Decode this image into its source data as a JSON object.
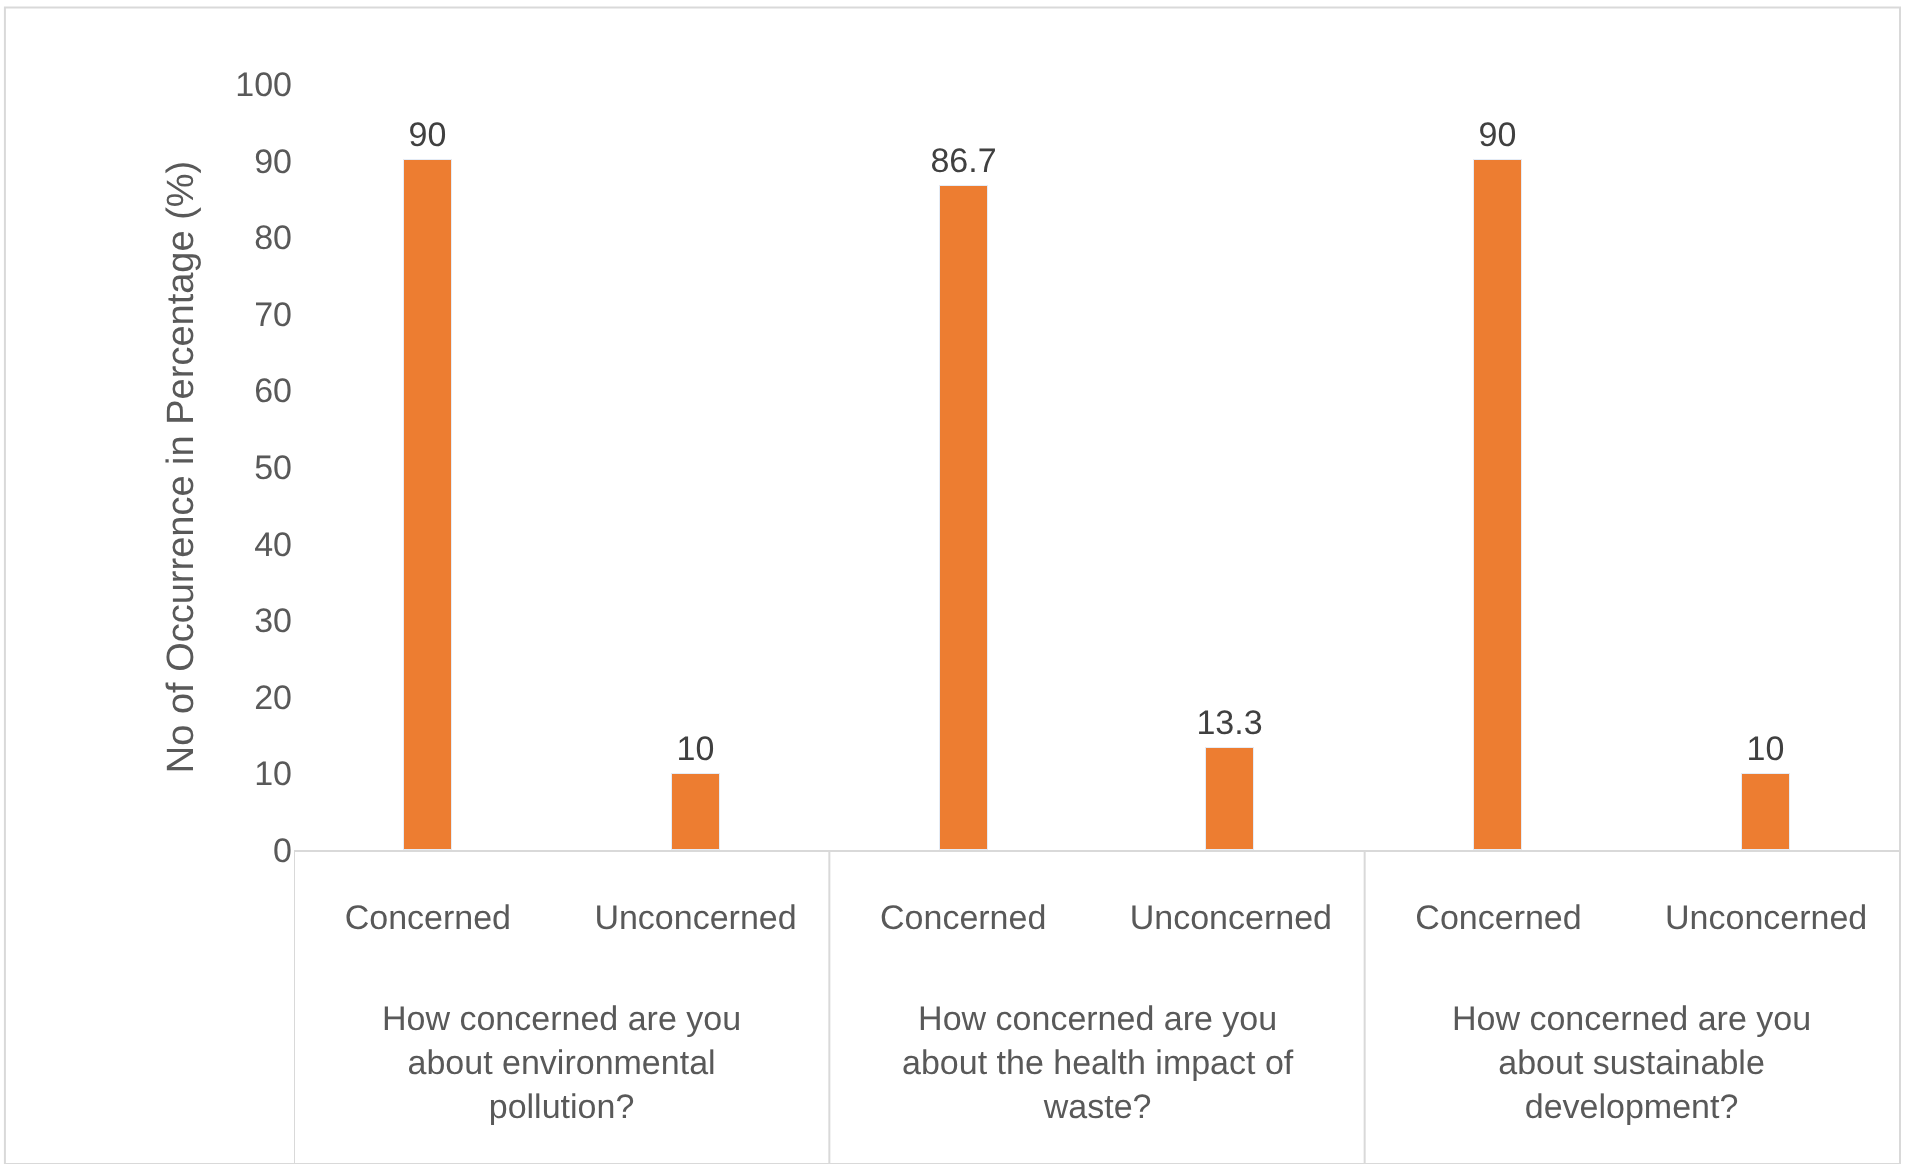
{
  "chart_data": {
    "type": "bar",
    "categories": [
      "Concerned",
      "Unconcerned",
      "Concerned",
      "Unconcerned",
      "Concerned",
      "Unconcerned"
    ],
    "values": [
      90,
      10,
      86.7,
      13.3,
      90,
      10
    ],
    "color": "#ed7d31",
    "ylabel": "No of Occurrence in Percentage (%)",
    "ylim": [
      0,
      100
    ],
    "yticks": [
      0,
      10,
      20,
      30,
      40,
      50,
      60,
      70,
      80,
      90,
      100
    ],
    "data_labels": true,
    "grid": false,
    "annotations": [
      "How concerned are you about environmental pollution?",
      "How concerned are you about the health impact of waste?",
      "How concerned are you about sustainable development?"
    ]
  }
}
